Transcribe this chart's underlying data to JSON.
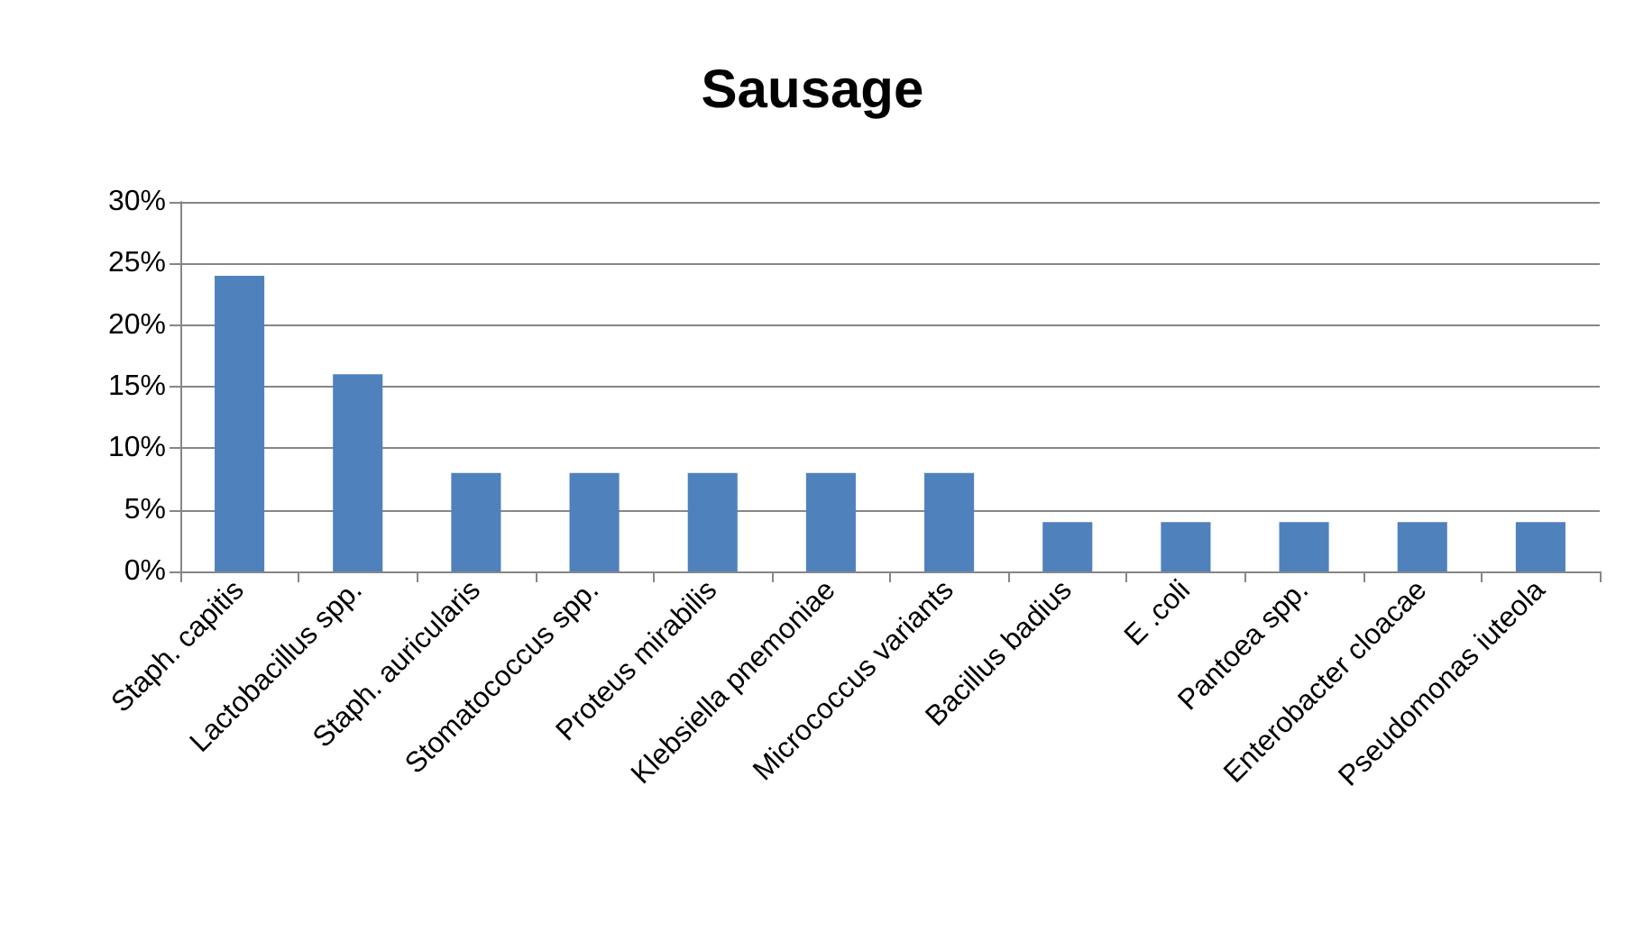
{
  "chart_data": {
    "type": "bar",
    "title": "Sausage",
    "categories": [
      "Staph. capitis",
      "Lactobacillus spp.",
      "Staph. auricularis",
      "Stomatococcus spp.",
      "Proteus mirabilis",
      "Klebsiella pnemoniae",
      "Micrococcus variants",
      "Bacillus badius",
      "E .coli",
      "Pantoea spp.",
      "Enterobacter cloacae",
      "Pseudomonas iuteola"
    ],
    "values": [
      24,
      16,
      8,
      8,
      8,
      8,
      8,
      4,
      4,
      4,
      4,
      4
    ],
    "color": "#4f81bd",
    "ylim": [
      0,
      30
    ],
    "yticks": [
      {
        "value": 0,
        "label": "0%"
      },
      {
        "value": 5,
        "label": "5%"
      },
      {
        "value": 10,
        "label": "10%"
      },
      {
        "value": 15,
        "label": "15%"
      },
      {
        "value": 20,
        "label": "20%"
      },
      {
        "value": 25,
        "label": "25%"
      },
      {
        "value": 30,
        "label": "30%"
      }
    ],
    "grid": "y"
  }
}
